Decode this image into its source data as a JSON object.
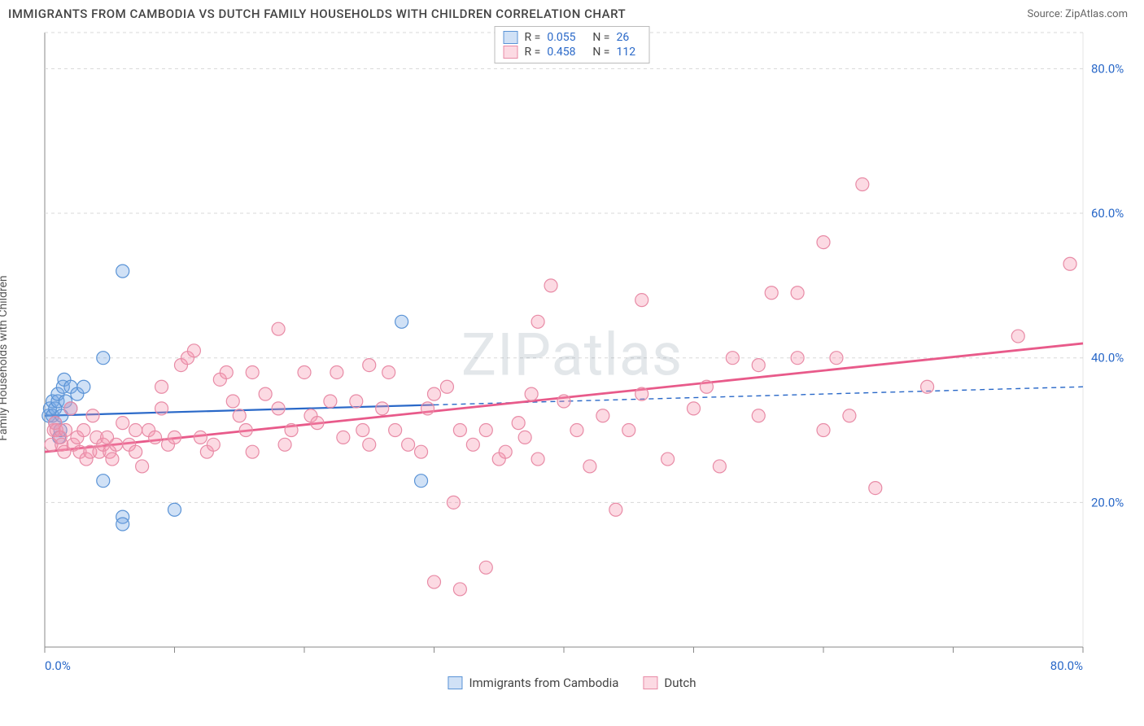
{
  "title": "IMMIGRANTS FROM CAMBODIA VS DUTCH FAMILY HOUSEHOLDS WITH CHILDREN CORRELATION CHART",
  "source_label": "Source: ZipAtlas.com",
  "watermark": "ZIPatlas",
  "ylabel": "Family Households with Children",
  "chart": {
    "type": "scatter-with-regression",
    "xlim": [
      0,
      80
    ],
    "ylim": [
      0,
      85
    ],
    "x_ticks": [
      0,
      10,
      20,
      30,
      40,
      50,
      60,
      70,
      80
    ],
    "y_gridlines": [
      20,
      40,
      60,
      80
    ],
    "x_axis_labels": [
      {
        "v": 0,
        "t": "0.0%"
      },
      {
        "v": 80,
        "t": "80.0%"
      }
    ],
    "y_axis_labels": [
      {
        "v": 20,
        "t": "20.0%"
      },
      {
        "v": 40,
        "t": "40.0%"
      },
      {
        "v": 60,
        "t": "60.0%"
      },
      {
        "v": 80,
        "t": "80.0%"
      }
    ],
    "grid_color": "#d8d8d8",
    "axis_color": "#888",
    "tick_label_color": "#2968c8",
    "background_color": "#ffffff",
    "marker_radius": 8,
    "marker_stroke_width": 1.2,
    "series": [
      {
        "id": "cambodia",
        "label": "Immigrants from Cambodia",
        "marker_fill": "rgba(120,170,230,0.35)",
        "marker_stroke": "#5a93d6",
        "line_color": "#2968c8",
        "line_width": 2.2,
        "r": "0.055",
        "n": "26",
        "reg_solid": {
          "x1": 0,
          "y1": 32,
          "x2": 30,
          "y2": 33.5
        },
        "reg_dash": {
          "x1": 30,
          "y1": 33.5,
          "x2": 80,
          "y2": 36
        },
        "points": [
          [
            0.3,
            32
          ],
          [
            0.4,
            33
          ],
          [
            0.6,
            34
          ],
          [
            0.6,
            32
          ],
          [
            0.8,
            31
          ],
          [
            0.8,
            33
          ],
          [
            1.0,
            34
          ],
          [
            1.0,
            35
          ],
          [
            1.1,
            29
          ],
          [
            1.2,
            30
          ],
          [
            1.3,
            32
          ],
          [
            1.4,
            36
          ],
          [
            1.5,
            37
          ],
          [
            1.6,
            34
          ],
          [
            2.0,
            36
          ],
          [
            2.0,
            33
          ],
          [
            2.5,
            35
          ],
          [
            3.0,
            36
          ],
          [
            4.5,
            40
          ],
          [
            4.5,
            23
          ],
          [
            6.0,
            52
          ],
          [
            6.0,
            18
          ],
          [
            6.0,
            17
          ],
          [
            10.0,
            19
          ],
          [
            27.5,
            45
          ],
          [
            29.0,
            23
          ]
        ]
      },
      {
        "id": "dutch",
        "label": "Dutch",
        "marker_fill": "rgba(245,150,175,0.35)",
        "marker_stroke": "#e88ba6",
        "line_color": "#e85a8a",
        "line_width": 2.8,
        "r": "0.458",
        "n": "112",
        "reg_solid": {
          "x1": 0,
          "y1": 27,
          "x2": 80,
          "y2": 42
        },
        "reg_dash": null,
        "points": [
          [
            0.5,
            28
          ],
          [
            0.7,
            30
          ],
          [
            0.8,
            31
          ],
          [
            0.9,
            30
          ],
          [
            1.2,
            29
          ],
          [
            1.3,
            28
          ],
          [
            1.5,
            27
          ],
          [
            1.6,
            30
          ],
          [
            2.0,
            33
          ],
          [
            2.2,
            28
          ],
          [
            2.5,
            29
          ],
          [
            2.7,
            27
          ],
          [
            3.0,
            30
          ],
          [
            3.2,
            26
          ],
          [
            3.5,
            27
          ],
          [
            3.7,
            32
          ],
          [
            4.0,
            29
          ],
          [
            4.2,
            27
          ],
          [
            4.5,
            28
          ],
          [
            4.8,
            29
          ],
          [
            5.0,
            27
          ],
          [
            5.2,
            26
          ],
          [
            5.5,
            28
          ],
          [
            6.0,
            31
          ],
          [
            6.5,
            28
          ],
          [
            7.0,
            27
          ],
          [
            7.0,
            30
          ],
          [
            7.5,
            25
          ],
          [
            8.0,
            30
          ],
          [
            8.5,
            29
          ],
          [
            9.0,
            33
          ],
          [
            9.0,
            36
          ],
          [
            9.5,
            28
          ],
          [
            10.0,
            29
          ],
          [
            10.5,
            39
          ],
          [
            11.0,
            40
          ],
          [
            11.5,
            41
          ],
          [
            12.0,
            29
          ],
          [
            12.5,
            27
          ],
          [
            13.0,
            28
          ],
          [
            13.5,
            37
          ],
          [
            14.0,
            38
          ],
          [
            14.5,
            34
          ],
          [
            15.0,
            32
          ],
          [
            15.5,
            30
          ],
          [
            16.0,
            38
          ],
          [
            17.0,
            35
          ],
          [
            18.0,
            33
          ],
          [
            18.0,
            44
          ],
          [
            18.5,
            28
          ],
          [
            19.0,
            30
          ],
          [
            20.0,
            38
          ],
          [
            20.5,
            32
          ],
          [
            21.0,
            31
          ],
          [
            22.0,
            34
          ],
          [
            22.5,
            38
          ],
          [
            23.0,
            29
          ],
          [
            24.0,
            34
          ],
          [
            24.5,
            30
          ],
          [
            25.0,
            28
          ],
          [
            25.0,
            39
          ],
          [
            26.0,
            33
          ],
          [
            26.5,
            38
          ],
          [
            27.0,
            30
          ],
          [
            28.0,
            28
          ],
          [
            29.0,
            27
          ],
          [
            29.5,
            33
          ],
          [
            30.0,
            35
          ],
          [
            30.0,
            9
          ],
          [
            31.0,
            36
          ],
          [
            31.5,
            20
          ],
          [
            32.0,
            30
          ],
          [
            32.0,
            8
          ],
          [
            33.0,
            28
          ],
          [
            34.0,
            30
          ],
          [
            35.0,
            26
          ],
          [
            35.5,
            27
          ],
          [
            36.5,
            31
          ],
          [
            37.0,
            29
          ],
          [
            37.5,
            35
          ],
          [
            38.0,
            45
          ],
          [
            38.0,
            26
          ],
          [
            39.0,
            50
          ],
          [
            40.0,
            34
          ],
          [
            41.0,
            30
          ],
          [
            42.0,
            25
          ],
          [
            43.0,
            32
          ],
          [
            44.0,
            19
          ],
          [
            45.0,
            30
          ],
          [
            46.0,
            48
          ],
          [
            46.0,
            35
          ],
          [
            48.0,
            26
          ],
          [
            50.0,
            33
          ],
          [
            51.0,
            36
          ],
          [
            52.0,
            25
          ],
          [
            53.0,
            40
          ],
          [
            55.0,
            39
          ],
          [
            55.0,
            32
          ],
          [
            56.0,
            49
          ],
          [
            58.0,
            40
          ],
          [
            58.0,
            49
          ],
          [
            60.0,
            56
          ],
          [
            60.0,
            30
          ],
          [
            61.0,
            40
          ],
          [
            62.0,
            32
          ],
          [
            63.0,
            64
          ],
          [
            64.0,
            22
          ],
          [
            68.0,
            36
          ],
          [
            75.0,
            43
          ],
          [
            79.0,
            53
          ],
          [
            34.0,
            11
          ],
          [
            16.0,
            27
          ]
        ]
      }
    ]
  },
  "legend_top": [
    {
      "series": "cambodia"
    },
    {
      "series": "dutch"
    }
  ],
  "legend_bottom": [
    {
      "series": "cambodia"
    },
    {
      "series": "dutch"
    }
  ]
}
